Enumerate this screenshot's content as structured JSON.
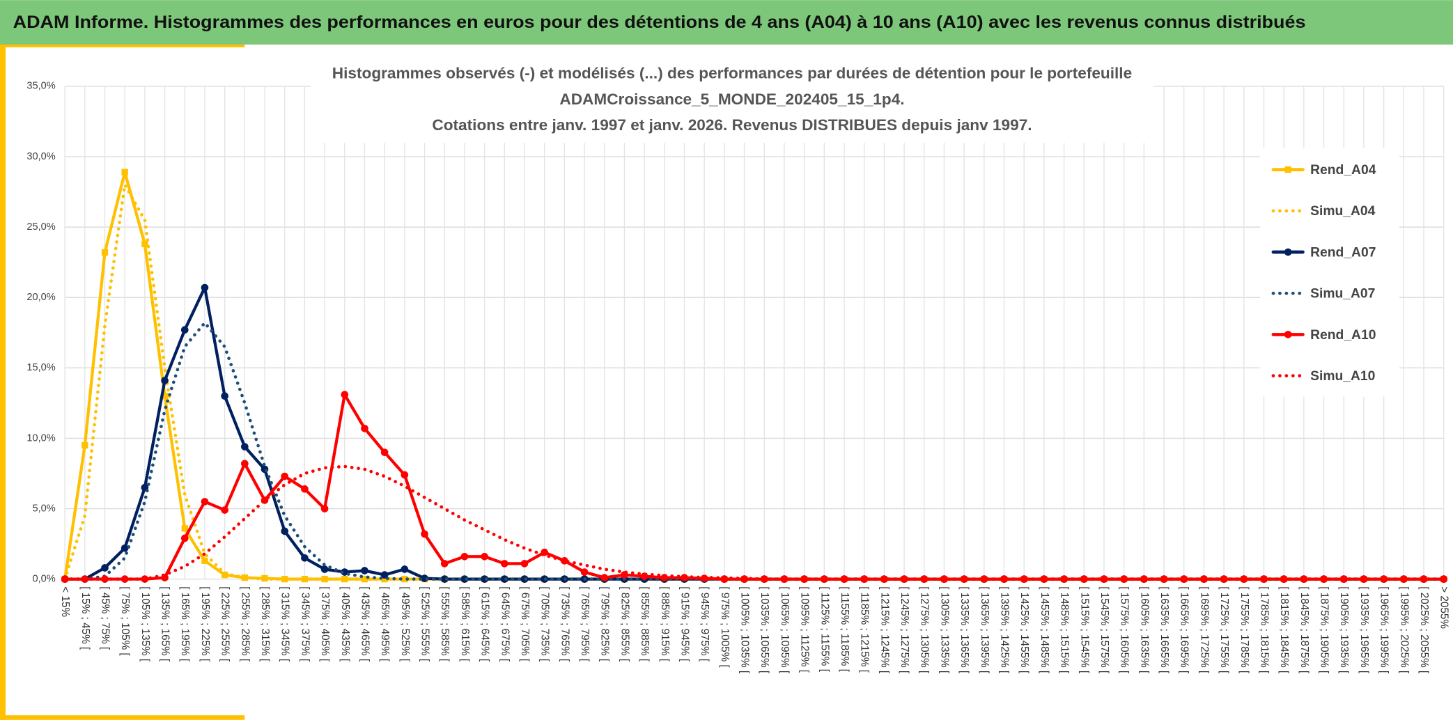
{
  "header": {
    "title": "ADAM Informe. Histogrammes des performances en euros pour des détentions de 4 ans (A04) à 10 ans (A10) avec les revenus connus distribués"
  },
  "chart_data": {
    "type": "line",
    "title": [
      "Histogrammes observés (-) et modélisés (...) des performances  par durées de détention pour le portefeuille",
      "ADAMCroissance_5_MONDE_202405_15_1p4.",
      "Cotations entre janv. 1997 et janv. 2026. Revenus DISTRIBUES depuis janv 1997."
    ],
    "categories": [
      "< 15%",
      "[ 15% ; 45% [",
      "[ 45% ; 75% [",
      "[ 75% ; 105% [",
      "[ 105% ; 135% [",
      "[ 135% ; 165% [",
      "[ 165% ; 195% [",
      "[ 195% ; 225% [",
      "[ 225% ; 255% [",
      "[ 255% ; 285% [",
      "[ 285% ; 315% [",
      "[ 315% ; 345% [",
      "[ 345% ; 375% [",
      "[ 375% ; 405% [",
      "[ 405% ; 435% [",
      "[ 435% ; 465% [",
      "[ 465% ; 495% [",
      "[ 495% ; 525% [",
      "[ 525% ; 555% [",
      "[ 555% ; 585% [",
      "[ 585% ; 615% [",
      "[ 615% ; 645% [",
      "[ 645% ; 675% [",
      "[ 675% ; 705% [",
      "[ 705% ; 735% [",
      "[ 735% ; 765% [",
      "[ 765% ; 795% [",
      "[ 795% ; 825% [",
      "[ 825% ; 855% [",
      "[ 855% ; 885% [",
      "[ 885% ; 915% [",
      "[ 915% ; 945% [",
      "[ 945% ; 975% [",
      "[ 975% ; 1005% [",
      "[ 1005% ; 1035% [",
      "[ 1035% ; 1065% [",
      "[ 1065% ; 1095% [",
      "[ 1095% ; 1125% [",
      "[ 1125% ; 1155% [",
      "[ 1155% ; 1185% [",
      "[ 1185% ; 1215% [",
      "[ 1215% ; 1245% [",
      "[ 1245% ; 1275% [",
      "[ 1275% ; 1305% [",
      "[ 1305% ; 1335% [",
      "[ 1335% ; 1365% [",
      "[ 1365% ; 1395% [",
      "[ 1395% ; 1425% [",
      "[ 1425% ; 1455% [",
      "[ 1455% ; 1485% [",
      "[ 1485% ; 1515% [",
      "[ 1515% ; 1545% [",
      "[ 1545% ; 1575% [",
      "[ 1575% ; 1605% [",
      "[ 1605% ; 1635% [",
      "[ 1635% ; 1665% [",
      "[ 1665% ; 1695% [",
      "[ 1695% ; 1725% [",
      "[ 1725% ; 1755% [",
      "[ 1755% ; 1785% [",
      "[ 1785% ; 1815% [",
      "[ 1815% ; 1845% [",
      "[ 1845% ; 1875% [",
      "[ 1875% ; 1905% [",
      "[ 1905% ; 1935% [",
      "[ 1935% ; 1965% [",
      "[ 1965% ; 1995% [",
      "[ 1995% ; 2025% [",
      "[ 2025% ; 2055% [",
      "> 2055%"
    ],
    "series": [
      {
        "name": "Rend_A04",
        "color": "#ffc000",
        "line_style": "solid",
        "marker": "square",
        "values": [
          0,
          9.5,
          23.2,
          28.9,
          23.8,
          13,
          3.6,
          1.3,
          0.3,
          0.1,
          0.05,
          0,
          0,
          0,
          0,
          0,
          0,
          0,
          0,
          0,
          0,
          0,
          0,
          0,
          0,
          0,
          0,
          0,
          0,
          0,
          0,
          0,
          0,
          0,
          0,
          0,
          0,
          0,
          0,
          0,
          0,
          0,
          0,
          0,
          0,
          0,
          0,
          0,
          0,
          0,
          0,
          0,
          0,
          0,
          0,
          0,
          0,
          0,
          0,
          0,
          0,
          0,
          0,
          0,
          0,
          0,
          0,
          0,
          0,
          0
        ]
      },
      {
        "name": "Simu_A04",
        "color": "#ffc000",
        "line_style": "dotted",
        "values": [
          0,
          4.5,
          18,
          28,
          25.5,
          15,
          6,
          1.8,
          0.4,
          0.1,
          0,
          0,
          0,
          0,
          0,
          0,
          0,
          0,
          0,
          0,
          0,
          0,
          0,
          0,
          0,
          0,
          0,
          0,
          0,
          0,
          0,
          0,
          0,
          0,
          0,
          0,
          0,
          0,
          0,
          0,
          0,
          0,
          0,
          0,
          0,
          0,
          0,
          0,
          0,
          0,
          0,
          0,
          0,
          0,
          0,
          0,
          0,
          0,
          0,
          0,
          0,
          0,
          0,
          0,
          0,
          0,
          0,
          0,
          0,
          0
        ]
      },
      {
        "name": "Rend_A07",
        "color": "#002060",
        "line_style": "solid",
        "marker": "circle",
        "values": [
          0,
          0,
          0.8,
          2.2,
          6.5,
          14.1,
          17.7,
          20.7,
          13,
          9.4,
          7.8,
          3.4,
          1.5,
          0.7,
          0.5,
          0.6,
          0.3,
          0.7,
          0.05,
          0,
          0,
          0,
          0,
          0,
          0,
          0,
          0,
          0,
          0,
          0,
          0,
          0,
          0,
          0,
          0,
          0,
          0,
          0,
          0,
          0,
          0,
          0,
          0,
          0,
          0,
          0,
          0,
          0,
          0,
          0,
          0,
          0,
          0,
          0,
          0,
          0,
          0,
          0,
          0,
          0,
          0,
          0,
          0,
          0,
          0,
          0,
          0,
          0,
          0,
          0
        ]
      },
      {
        "name": "Simu_A07",
        "color": "#1f4e79",
        "line_style": "dotted",
        "values": [
          0,
          0,
          0.2,
          1.5,
          5.5,
          12,
          16.5,
          18.2,
          16.5,
          12.5,
          8,
          4.5,
          2.3,
          1,
          0.4,
          0.15,
          0.05,
          0,
          0,
          0,
          0,
          0,
          0,
          0,
          0,
          0,
          0,
          0,
          0,
          0,
          0,
          0,
          0,
          0,
          0,
          0,
          0,
          0,
          0,
          0,
          0,
          0,
          0,
          0,
          0,
          0,
          0,
          0,
          0,
          0,
          0,
          0,
          0,
          0,
          0,
          0,
          0,
          0,
          0,
          0,
          0,
          0,
          0,
          0,
          0,
          0,
          0,
          0,
          0,
          0
        ]
      },
      {
        "name": "Rend_A10",
        "color": "#ff0000",
        "line_style": "solid",
        "marker": "circle",
        "values": [
          0,
          0,
          0,
          0,
          0,
          0.1,
          2.9,
          5.5,
          4.9,
          8.2,
          5.6,
          7.3,
          6.4,
          5,
          13.1,
          10.7,
          9,
          7.4,
          3.2,
          1.1,
          1.6,
          1.6,
          1.1,
          1.1,
          1.9,
          1.3,
          0.5,
          0.1,
          0.3,
          0.2,
          0.1,
          0.1,
          0.05,
          0,
          0,
          0,
          0,
          0,
          0,
          0,
          0,
          0,
          0,
          0,
          0,
          0,
          0,
          0,
          0,
          0,
          0,
          0,
          0,
          0,
          0,
          0,
          0,
          0,
          0,
          0,
          0,
          0,
          0,
          0,
          0,
          0,
          0,
          0,
          0,
          0
        ]
      },
      {
        "name": "Simu_A10",
        "color": "#ff0000",
        "line_style": "dotted",
        "values": [
          0,
          0,
          0,
          0,
          0,
          0.3,
          0.9,
          1.8,
          3,
          4.3,
          5.6,
          6.7,
          7.5,
          7.9,
          8,
          7.8,
          7.3,
          6.6,
          5.8,
          5,
          4.2,
          3.5,
          2.8,
          2.2,
          1.7,
          1.3,
          1,
          0.7,
          0.5,
          0.35,
          0.25,
          0.17,
          0.12,
          0.08,
          0.05,
          0,
          0,
          0,
          0,
          0,
          0,
          0,
          0,
          0,
          0,
          0,
          0,
          0,
          0,
          0,
          0,
          0,
          0,
          0,
          0,
          0,
          0,
          0,
          0,
          0,
          0,
          0,
          0,
          0,
          0,
          0,
          0,
          0,
          0,
          0
        ]
      }
    ],
    "ylim": [
      0,
      35
    ],
    "yticks": [
      {
        "value": 0,
        "label": "0,0%"
      },
      {
        "value": 5,
        "label": "5,0%"
      },
      {
        "value": 10,
        "label": "10,0%"
      },
      {
        "value": 15,
        "label": "15,0%"
      },
      {
        "value": 20,
        "label": "20,0%"
      },
      {
        "value": 25,
        "label": "25,0%"
      },
      {
        "value": 30,
        "label": "30,0%"
      },
      {
        "value": 35,
        "label": "35,0%"
      }
    ],
    "grid": true,
    "legend": "right"
  }
}
